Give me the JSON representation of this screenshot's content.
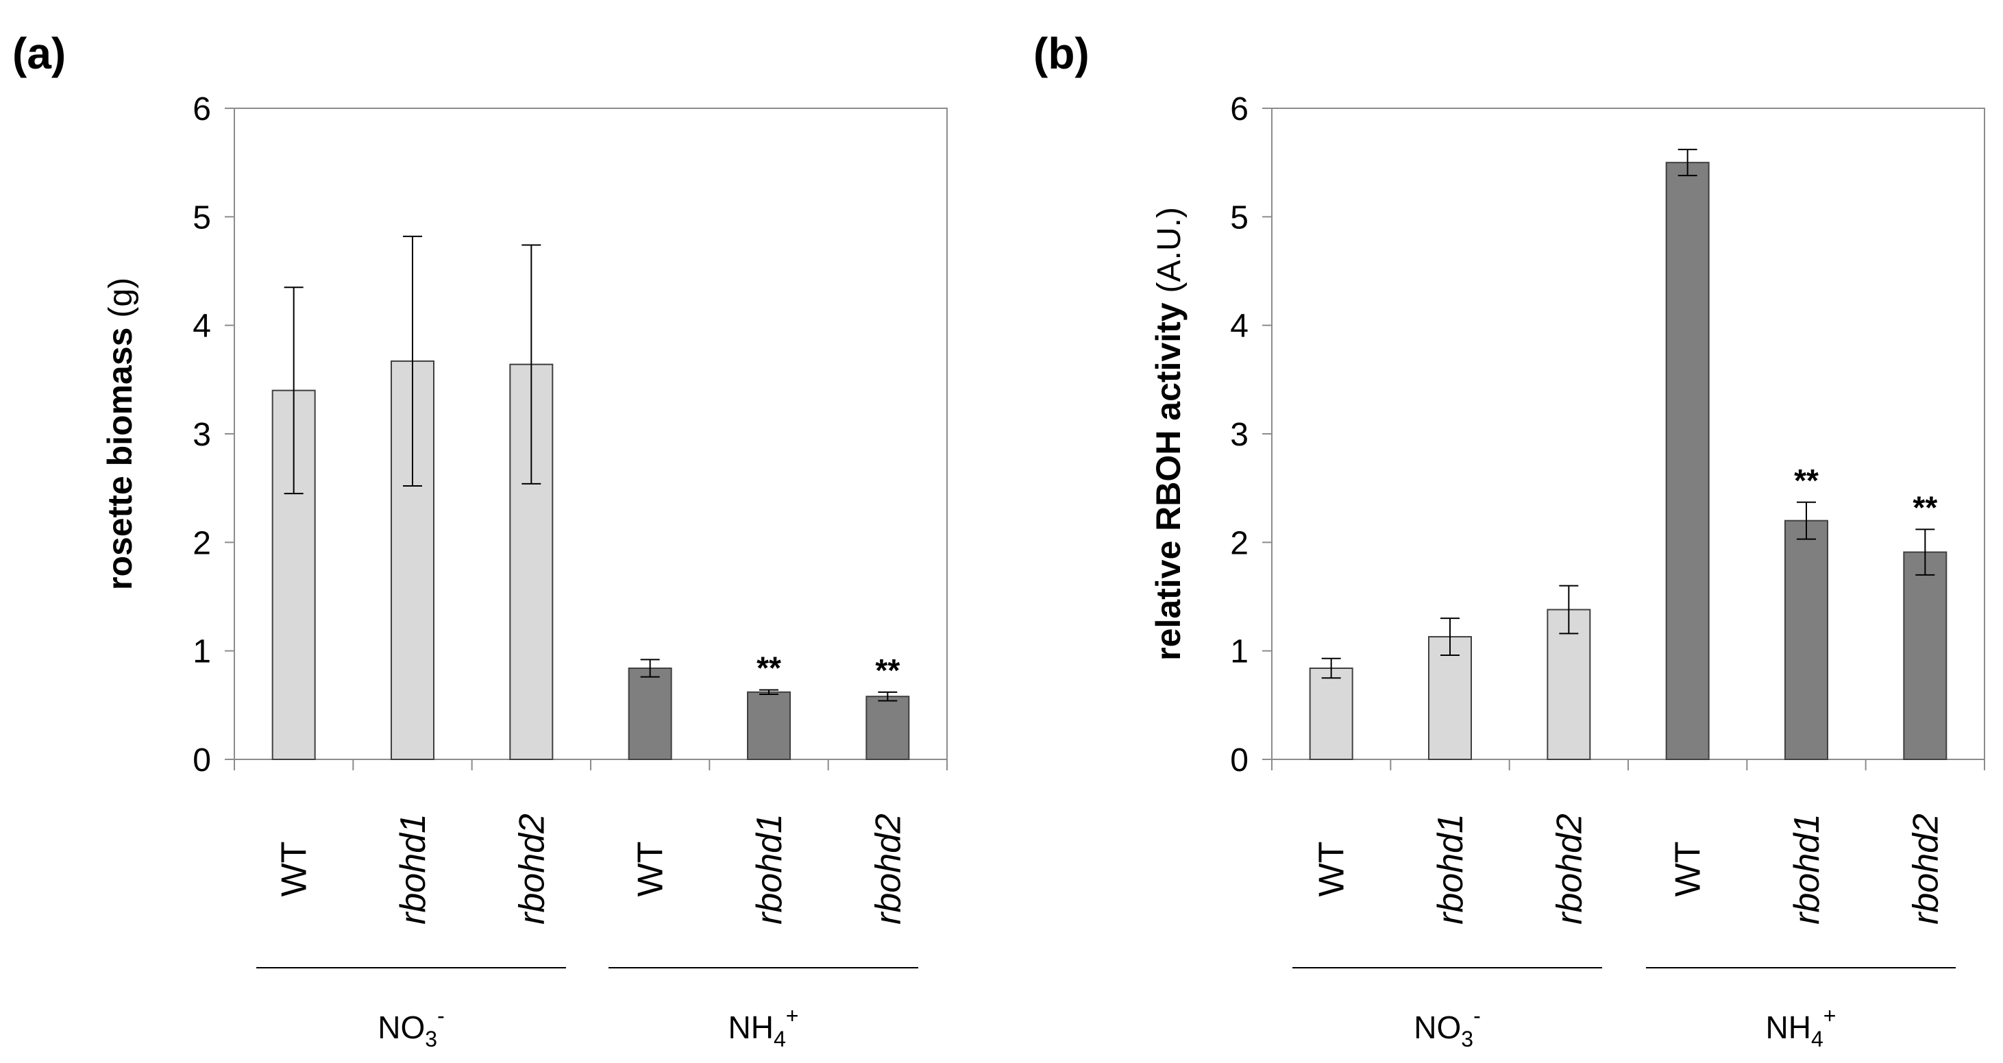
{
  "chart_data": [
    {
      "type": "bar",
      "panel_label": "(a)",
      "ylabel": "rosette biomass",
      "ylabel_unit": "(g)",
      "ylim": [
        0,
        6
      ],
      "yticks": [
        "0",
        "1",
        "2",
        "3",
        "4",
        "5",
        "6"
      ],
      "categories": [
        "WT",
        "rbohd1",
        "rbohd2",
        "WT",
        "rbohd1",
        "rbohd2"
      ],
      "category_italic": [
        false,
        true,
        true,
        false,
        true,
        true
      ],
      "groups": [
        {
          "base": "NO",
          "sub": "3",
          "sup": "-"
        },
        {
          "base": "NH",
          "sub": "4",
          "sup": "+"
        }
      ],
      "values": [
        3.4,
        3.67,
        3.64,
        0.84,
        0.62,
        0.58
      ],
      "errors": [
        0.95,
        1.15,
        1.1,
        0.08,
        0.02,
        0.04
      ],
      "bar_colors": [
        "#d9d9d9",
        "#d9d9d9",
        "#d9d9d9",
        "#7f7f7f",
        "#7f7f7f",
        "#7f7f7f"
      ],
      "significance": [
        "",
        "",
        "",
        "",
        "**",
        "**"
      ]
    },
    {
      "type": "bar",
      "panel_label": "(b)",
      "ylabel": "relative RBOH activity",
      "ylabel_unit": "(A.U.)",
      "ylim": [
        0,
        6
      ],
      "yticks": [
        "0",
        "1",
        "2",
        "3",
        "4",
        "5",
        "6"
      ],
      "categories": [
        "WT",
        "rbohd1",
        "rbohd2",
        "WT",
        "rbohd1",
        "rbohd2"
      ],
      "category_italic": [
        false,
        true,
        true,
        false,
        true,
        true
      ],
      "groups": [
        {
          "base": "NO",
          "sub": "3",
          "sup": "-"
        },
        {
          "base": "NH",
          "sub": "4",
          "sup": "+"
        }
      ],
      "values": [
        0.84,
        1.13,
        1.38,
        5.5,
        2.2,
        1.91
      ],
      "errors": [
        0.09,
        0.17,
        0.22,
        0.12,
        0.17,
        0.21
      ],
      "bar_colors": [
        "#d9d9d9",
        "#d9d9d9",
        "#d9d9d9",
        "#7f7f7f",
        "#7f7f7f",
        "#7f7f7f"
      ],
      "significance": [
        "",
        "",
        "",
        "",
        "**",
        "**"
      ]
    }
  ]
}
